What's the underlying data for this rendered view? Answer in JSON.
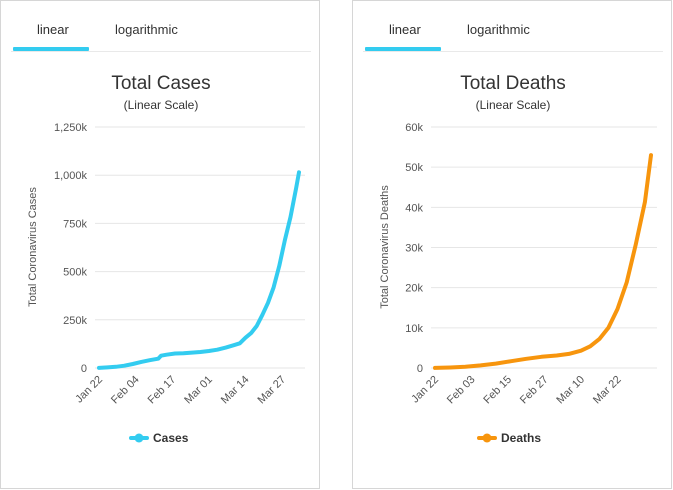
{
  "tabs": {
    "linear": "linear",
    "logarithmic": "logarithmic"
  },
  "colors": {
    "cases": "#33ccf0",
    "deaths": "#f7950d",
    "grid": "#e6e6e6",
    "tab_active": "#33ccf0"
  },
  "chart_data": [
    {
      "type": "line",
      "title": "Total Cases",
      "subtitle": "(Linear Scale)",
      "ylabel": "Total Coronavirus Cases",
      "xlabel": "",
      "ylim": [
        0,
        1250000
      ],
      "y_ticks": [
        0,
        250000,
        500000,
        750000,
        1000000,
        1250000
      ],
      "y_tick_labels": [
        "0",
        "250k",
        "500k",
        "750k",
        "1,000k",
        "1,250k"
      ],
      "x_tick_labels": [
        "Jan 22",
        "Feb 04",
        "Feb 17",
        "Mar 01",
        "Mar 14",
        "Mar 27"
      ],
      "x_range": [
        "Jan 22",
        "Apr 02"
      ],
      "grid": true,
      "legend_position": "bottom",
      "series": [
        {
          "name": "Cases",
          "x": [
            "Jan 22",
            "Jan 25",
            "Jan 28",
            "Jan 31",
            "Feb 03",
            "Feb 06",
            "Feb 09",
            "Feb 12",
            "Feb 13",
            "Feb 15",
            "Feb 18",
            "Feb 21",
            "Feb 24",
            "Feb 27",
            "Mar 01",
            "Mar 04",
            "Mar 07",
            "Mar 10",
            "Mar 12",
            "Mar 14",
            "Mar 16",
            "Mar 18",
            "Mar 20",
            "Mar 22",
            "Mar 24",
            "Mar 26",
            "Mar 28",
            "Mar 30",
            "Apr 01",
            "Apr 02"
          ],
          "values": [
            555,
            2900,
            6000,
            12000,
            20600,
            31500,
            40500,
            48000,
            64000,
            69000,
            75000,
            77000,
            80000,
            83000,
            88000,
            95000,
            106000,
            119000,
            128000,
            157000,
            181000,
            218000,
            276000,
            338000,
            418000,
            530000,
            664000,
            783000,
            935000,
            1015000
          ]
        }
      ]
    },
    {
      "type": "line",
      "title": "Total Deaths",
      "subtitle": "(Linear Scale)",
      "ylabel": "Total Coronavirus Deaths",
      "xlabel": "",
      "ylim": [
        0,
        60000
      ],
      "y_ticks": [
        0,
        10000,
        20000,
        30000,
        40000,
        50000,
        60000
      ],
      "y_tick_labels": [
        "0",
        "10k",
        "20k",
        "30k",
        "40k",
        "50k",
        "60k"
      ],
      "x_tick_labels": [
        "Jan 22",
        "Feb 03",
        "Feb 15",
        "Feb 27",
        "Mar 10",
        "Mar 22"
      ],
      "x_range": [
        "Jan 22",
        "Apr 02"
      ],
      "grid": true,
      "legend_position": "bottom",
      "series": [
        {
          "name": "Deaths",
          "x": [
            "Jan 22",
            "Jan 27",
            "Feb 01",
            "Feb 06",
            "Feb 11",
            "Feb 16",
            "Feb 21",
            "Feb 26",
            "Mar 02",
            "Mar 06",
            "Mar 10",
            "Mar 13",
            "Mar 16",
            "Mar 19",
            "Mar 22",
            "Mar 25",
            "Mar 28",
            "Mar 31",
            "Apr 02"
          ],
          "values": [
            17,
            130,
            300,
            640,
            1100,
            1700,
            2300,
            2800,
            3100,
            3500,
            4300,
            5400,
            7200,
            10000,
            14700,
            21300,
            30800,
            41300,
            53000
          ]
        }
      ]
    }
  ],
  "legend": {
    "cases": "Cases",
    "deaths": "Deaths"
  }
}
